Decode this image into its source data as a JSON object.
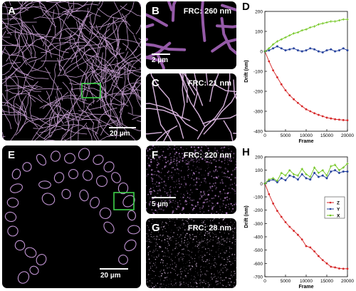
{
  "panels": {
    "A": {
      "letter": "A",
      "scale": "20 µm"
    },
    "B": {
      "letter": "B",
      "frc": "FRC: 260 nm",
      "scale": "2 µm"
    },
    "C": {
      "letter": "C",
      "frc": "FRC: 21 nm"
    },
    "E": {
      "letter": "E",
      "scale": "20 µm"
    },
    "F": {
      "letter": "F",
      "frc": "FRC: 220 nm",
      "scale": "5 µm"
    },
    "G": {
      "letter": "G",
      "frc": "FRC: 28 nm"
    }
  },
  "colors": {
    "z": "#d62728",
    "y": "#1f3c9a",
    "x": "#6cc417",
    "roi": "#3fd24a",
    "fiber": "#e3b6f0"
  },
  "chart_data": [
    {
      "letter": "D",
      "type": "line",
      "xlabel": "Frame",
      "ylabel": "Drift (nm)",
      "xlim": [
        0,
        20000
      ],
      "ylim": [
        -400,
        200
      ],
      "xticks": [
        0,
        5000,
        10000,
        15000,
        20000
      ],
      "yticks": [
        -400,
        -300,
        -200,
        -100,
        0,
        100,
        200
      ],
      "series": [
        {
          "key": "z",
          "x": [
            0,
            1000,
            2000,
            3000,
            4000,
            5000,
            6000,
            7000,
            8000,
            9000,
            10000,
            11000,
            12000,
            13000,
            14000,
            15000,
            16000,
            17000,
            18000,
            19000,
            20000
          ],
          "values": [
            0,
            -50,
            -95,
            -130,
            -165,
            -195,
            -220,
            -240,
            -258,
            -275,
            -290,
            -300,
            -310,
            -318,
            -325,
            -332,
            -336,
            -340,
            -342,
            -344,
            -345
          ]
        },
        {
          "key": "y",
          "x": [
            0,
            1000,
            2000,
            3000,
            4000,
            5000,
            6000,
            7000,
            8000,
            9000,
            10000,
            11000,
            12000,
            13000,
            14000,
            15000,
            16000,
            17000,
            18000,
            19000,
            20000
          ],
          "values": [
            0,
            5,
            15,
            25,
            15,
            5,
            10,
            15,
            5,
            0,
            5,
            15,
            10,
            0,
            -5,
            5,
            10,
            0,
            5,
            15,
            5
          ]
        },
        {
          "key": "x",
          "x": [
            0,
            1000,
            2000,
            3000,
            4000,
            5000,
            6000,
            7000,
            8000,
            9000,
            10000,
            11000,
            12000,
            13000,
            14000,
            15000,
            16000,
            17000,
            18000,
            19000,
            20000
          ],
          "values": [
            0,
            15,
            35,
            50,
            60,
            70,
            80,
            90,
            95,
            105,
            110,
            120,
            125,
            135,
            140,
            145,
            150,
            150,
            155,
            160,
            160
          ]
        }
      ]
    },
    {
      "letter": "H",
      "type": "line",
      "xlabel": "Frame",
      "ylabel": "Drift (nm)",
      "xlim": [
        0,
        20000
      ],
      "ylim": [
        -700,
        200
      ],
      "xticks": [
        0,
        5000,
        10000,
        15000,
        20000
      ],
      "yticks": [
        -700,
        -600,
        -500,
        -400,
        -300,
        -200,
        -100,
        0,
        100,
        200
      ],
      "legend": {
        "position": "right",
        "entries": [
          "Z",
          "Y",
          "X"
        ]
      },
      "series": [
        {
          "key": "z",
          "name": "Z",
          "x": [
            0,
            1000,
            2000,
            3000,
            4000,
            5000,
            6000,
            7000,
            8000,
            9000,
            10000,
            11000,
            12000,
            13000,
            14000,
            15000,
            16000,
            17000,
            18000,
            19000,
            20000
          ],
          "values": [
            0,
            -80,
            -150,
            -205,
            -250,
            -290,
            -325,
            -355,
            -385,
            -420,
            -470,
            -480,
            -510,
            -545,
            -575,
            -600,
            -625,
            -630,
            -638,
            -640,
            -640
          ]
        },
        {
          "key": "y",
          "name": "Y",
          "x": [
            0,
            1000,
            2000,
            3000,
            4000,
            5000,
            6000,
            7000,
            8000,
            9000,
            10000,
            11000,
            12000,
            13000,
            14000,
            15000,
            16000,
            17000,
            18000,
            19000,
            20000
          ],
          "values": [
            0,
            20,
            30,
            10,
            40,
            25,
            60,
            50,
            30,
            70,
            40,
            30,
            80,
            50,
            60,
            40,
            90,
            100,
            80,
            90,
            90
          ]
        },
        {
          "key": "x",
          "name": "X",
          "x": [
            0,
            1000,
            2000,
            3000,
            4000,
            5000,
            6000,
            7000,
            8000,
            9000,
            10000,
            11000,
            12000,
            13000,
            14000,
            15000,
            16000,
            17000,
            18000,
            19000,
            20000
          ],
          "values": [
            0,
            30,
            40,
            20,
            80,
            60,
            100,
            70,
            60,
            110,
            70,
            50,
            120,
            80,
            100,
            60,
            130,
            140,
            100,
            120,
            150
          ]
        }
      ]
    }
  ]
}
